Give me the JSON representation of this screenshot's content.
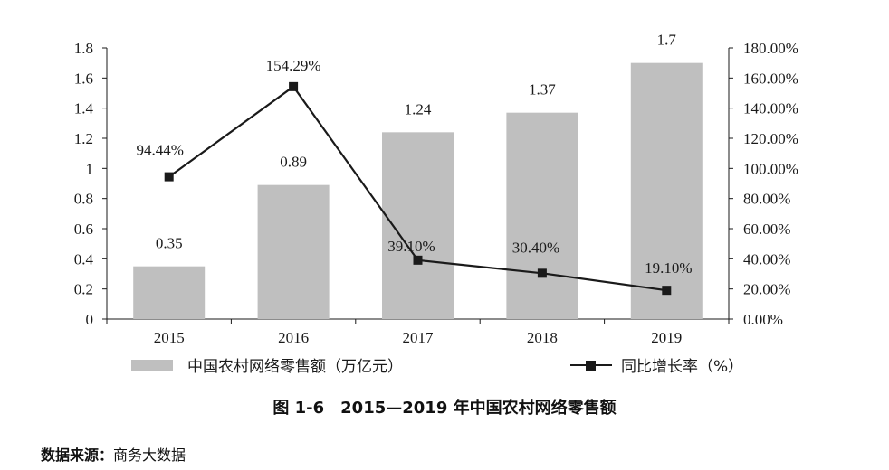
{
  "chart_data": {
    "type": "bar+line",
    "categories": [
      "2015",
      "2016",
      "2017",
      "2018",
      "2019"
    ],
    "series": [
      {
        "name": "中国农村网络零售额（万亿元）",
        "type": "bar",
        "axis": "left",
        "values": [
          0.35,
          0.89,
          1.24,
          1.37,
          1.7
        ],
        "labels": [
          "0.35",
          "0.89",
          "1.24",
          "1.37",
          "1.7"
        ],
        "color": "#bfbfbf"
      },
      {
        "name": "同比增长率（%）",
        "type": "line",
        "axis": "right",
        "values": [
          94.44,
          154.29,
          39.1,
          30.4,
          19.1
        ],
        "labels": [
          "94.44%",
          "154.29%",
          "39.10%",
          "30.40%",
          "19.10%"
        ],
        "color": "#1a1a1a"
      }
    ],
    "y_left": {
      "min": 0,
      "max": 1.8,
      "ticks": [
        "0",
        "0.2",
        "0.4",
        "0.6",
        "0.8",
        "1",
        "1.2",
        "1.4",
        "1.6",
        "1.8"
      ]
    },
    "y_right": {
      "min": 0,
      "max": 180,
      "ticks": [
        "0.00%",
        "20.00%",
        "40.00%",
        "60.00%",
        "80.00%",
        "100.00%",
        "120.00%",
        "140.00%",
        "160.00%",
        "180.00%"
      ]
    },
    "grid": false,
    "legend_position": "bottom"
  },
  "legend": {
    "bar_label": "中国农村网络零售额（万亿元）",
    "line_label": "同比增长率（%）"
  },
  "caption": "图 1-6　2015—2019 年中国农村网络零售额",
  "source": {
    "label": "数据来源：",
    "text": "商务大数据"
  }
}
